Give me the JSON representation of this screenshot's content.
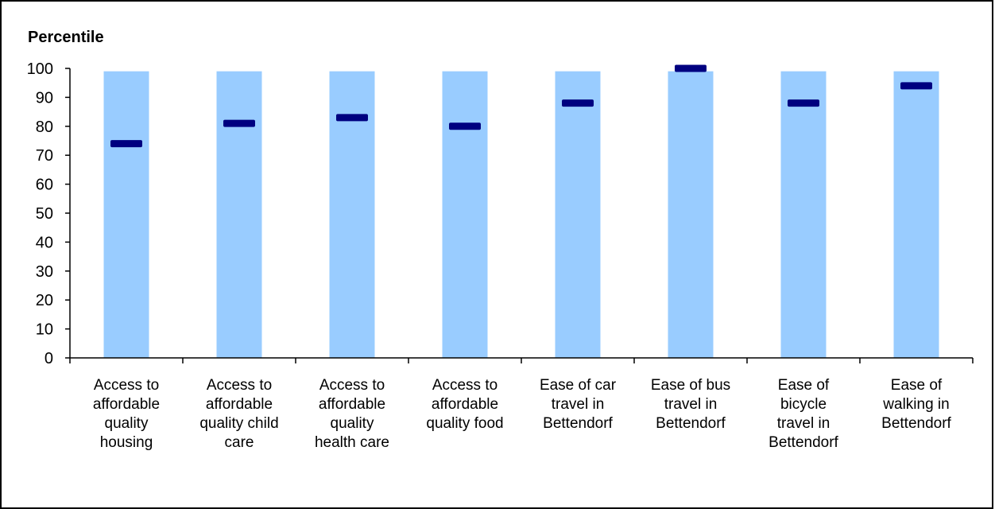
{
  "chart_data": {
    "type": "bar",
    "ylabel": "Percentile",
    "xlabel": "",
    "ylim": [
      0,
      100
    ],
    "yticks": [
      0,
      10,
      20,
      30,
      40,
      50,
      60,
      70,
      80,
      90,
      100
    ],
    "categories": [
      "Access to affordable quality housing",
      "Access to affordable quality child care",
      "Access to affordable quality health care",
      "Access to affordable quality food",
      "Ease of car travel in Bettendorf",
      "Ease of bus travel in Bettendorf",
      "Ease of bicycle travel in Bettendorf",
      "Ease of walking in Bettendorf"
    ],
    "category_lines": [
      [
        "Access to",
        "affordable",
        "quality",
        "housing"
      ],
      [
        "Access to",
        "affordable",
        "quality child",
        "care"
      ],
      [
        "Access to",
        "affordable",
        "quality",
        "health care"
      ],
      [
        "Access to",
        "affordable",
        "quality food"
      ],
      [
        "Ease of car",
        "travel in",
        "Bettendorf"
      ],
      [
        "Ease of bus",
        "travel in",
        "Bettendorf"
      ],
      [
        "Ease of",
        "bicycle",
        "travel in",
        "Bettendorf"
      ],
      [
        "Ease of",
        "walking in",
        "Bettendorf"
      ]
    ],
    "series": [
      {
        "values": [
          99,
          99,
          99,
          99,
          99,
          99,
          99,
          99
        ]
      },
      {
        "values": [
          74,
          81,
          83,
          80,
          88,
          100,
          88,
          94
        ]
      }
    ],
    "grid": false,
    "colors": {
      "range_bar": "#99ccff",
      "marker": "#000080",
      "axis": "#000000"
    }
  }
}
